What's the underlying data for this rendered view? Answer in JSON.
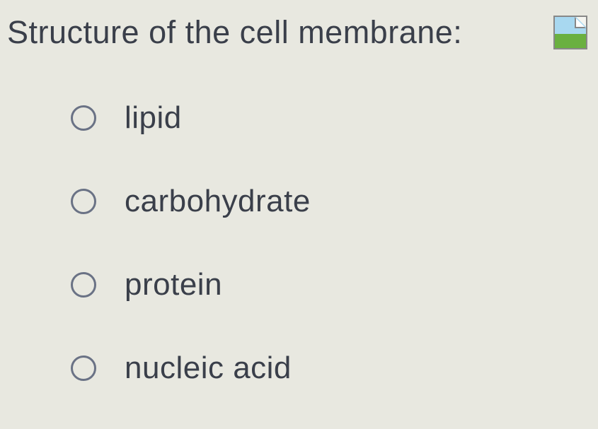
{
  "question": {
    "text": "Structure of the cell membrane:",
    "text_color": "#3a3f4a",
    "font_size": 45
  },
  "options": [
    {
      "label": "lipid",
      "selected": false
    },
    {
      "label": "carbohydrate",
      "selected": false
    },
    {
      "label": "protein",
      "selected": false
    },
    {
      "label": "nucleic acid",
      "selected": false
    }
  ],
  "styling": {
    "background_color": "#e8e8e0",
    "radio_border_color": "#6a7285",
    "option_text_color": "#3a3f4a",
    "option_font_size": 44
  },
  "icon": {
    "name": "broken-image-placeholder"
  }
}
